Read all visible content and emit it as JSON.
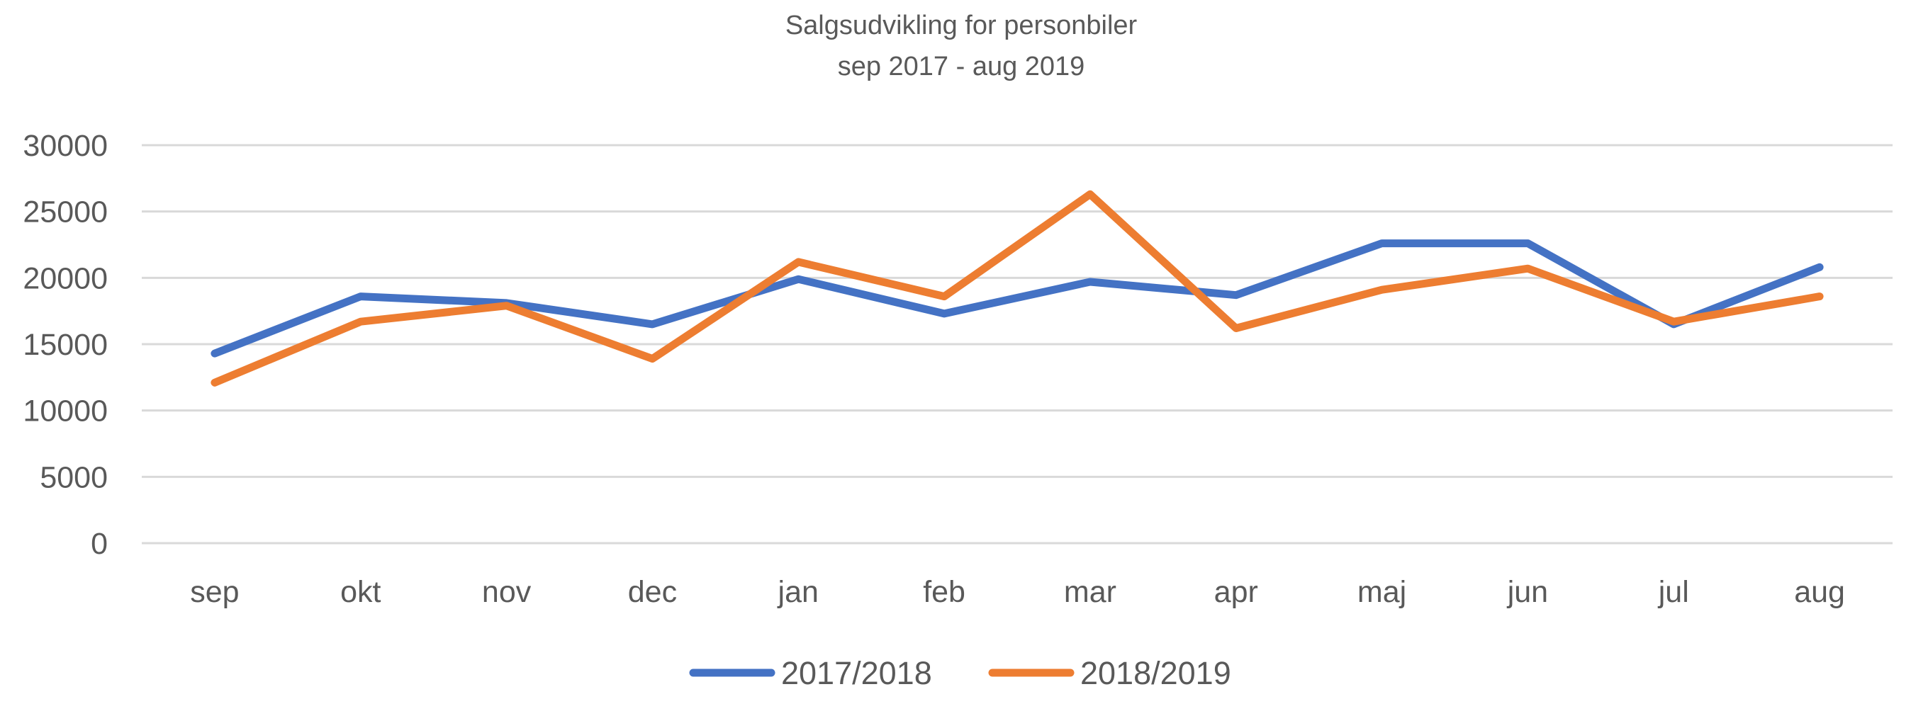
{
  "chart_data": {
    "type": "line",
    "title": "Salgsudvikling for personbiler",
    "subtitle": "sep 2017 - aug 2019",
    "xlabel": "",
    "ylabel": "",
    "ylim": [
      0,
      30000
    ],
    "yticks": [
      "0",
      "5000",
      "10000",
      "15000",
      "20000",
      "25000",
      "30000"
    ],
    "grid": true,
    "legend_position": "bottom",
    "categories": [
      "sep",
      "okt",
      "nov",
      "dec",
      "jan",
      "feb",
      "mar",
      "apr",
      "maj",
      "jun",
      "jul",
      "aug"
    ],
    "series": [
      {
        "name": "2017/2018",
        "color": "#4472c4",
        "values": [
          14300,
          18600,
          18100,
          16500,
          19900,
          17300,
          19700,
          18700,
          22600,
          22600,
          16500,
          20800
        ]
      },
      {
        "name": "2018/2019",
        "color": "#ed7d31",
        "values": [
          12100,
          16700,
          17900,
          13900,
          21200,
          18600,
          26300,
          16200,
          19100,
          20700,
          16700,
          18600
        ]
      }
    ]
  }
}
